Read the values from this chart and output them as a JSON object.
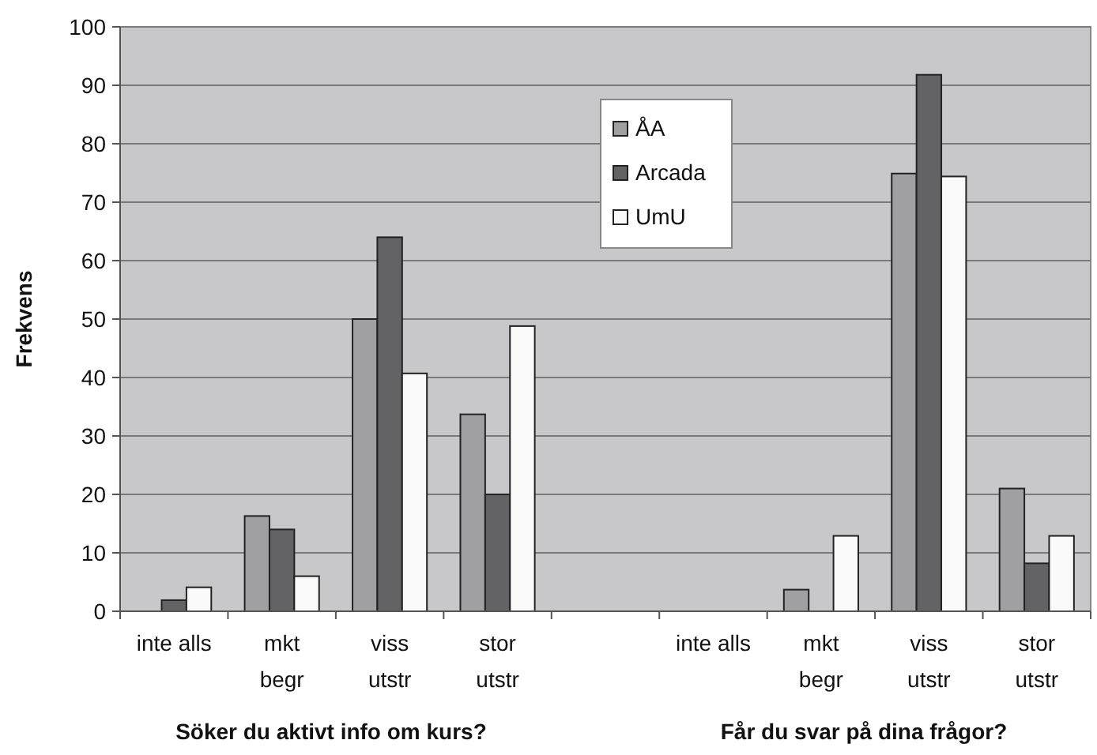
{
  "chart_data": {
    "type": "bar",
    "ylabel": "Frekvens",
    "categories": [
      "inte alls",
      "mkt\nbegr",
      "viss\nutstr",
      "stor\nutstr",
      null,
      "inte alls",
      "mkt\nbegr",
      "viss\nutstr",
      "stor\nutstr"
    ],
    "series": [
      {
        "name": "ÅA",
        "color": "#a0a0a2",
        "values": [
          null,
          16.3,
          50,
          33.7,
          null,
          null,
          3.7,
          74.9,
          21
        ]
      },
      {
        "name": "Arcada",
        "color": "#636365",
        "values": [
          1.9,
          14,
          64,
          20,
          null,
          null,
          null,
          91.8,
          8.2
        ]
      },
      {
        "name": "UmU",
        "color": "#fafafa",
        "values": [
          4.1,
          6,
          40.7,
          48.8,
          null,
          null,
          12.9,
          74.4,
          12.9
        ]
      }
    ],
    "ylim": [
      0,
      100
    ],
    "yticks": [
      0,
      10,
      20,
      30,
      40,
      50,
      60,
      70,
      80,
      90,
      100
    ],
    "grid": "y",
    "legend": "top",
    "annotations": [
      "Söker du aktivt info om kurs?",
      "Får du svar på dina frågor?"
    ]
  }
}
